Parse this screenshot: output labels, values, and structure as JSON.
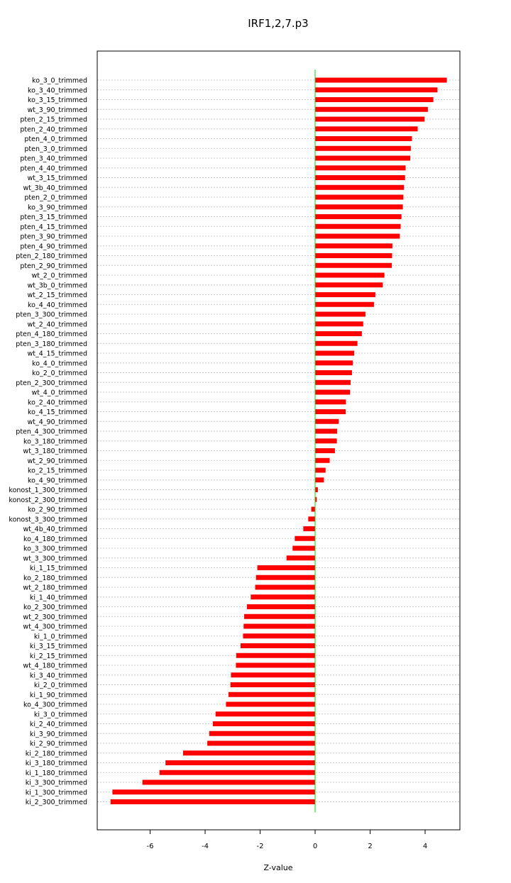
{
  "chart_data": {
    "type": "bar",
    "orientation": "horizontal",
    "title": "IRF1,2,7.p3",
    "xlabel": "Z-value",
    "ylabel": "",
    "xlim": [
      -7.5,
      4.9
    ],
    "xticks": [
      -6,
      -4,
      -2,
      0,
      2,
      4
    ],
    "grid": "horizontal dotted",
    "colors": {
      "bar": "#ff0000",
      "zero_line": "#00dd00",
      "grid": "#c8c8c8"
    },
    "categories": [
      "ko_3_0_trimmed",
      "ko_3_40_trimmed",
      "ko_3_15_trimmed",
      "wt_3_90_trimmed",
      "pten_2_15_trimmed",
      "pten_2_40_trimmed",
      "pten_4_0_trimmed",
      "pten_3_0_trimmed",
      "pten_3_40_trimmed",
      "pten_4_40_trimmed",
      "wt_3_15_trimmed",
      "wt_3b_40_trimmed",
      "pten_2_0_trimmed",
      "ko_3_90_trimmed",
      "pten_3_15_trimmed",
      "pten_4_15_trimmed",
      "pten_3_90_trimmed",
      "pten_4_90_trimmed",
      "pten_2_180_trimmed",
      "pten_2_90_trimmed",
      "wt_2_0_trimmed",
      "wt_3b_0_trimmed",
      "wt_2_15_trimmed",
      "ko_4_40_trimmed",
      "pten_3_300_trimmed",
      "wt_2_40_trimmed",
      "pten_4_180_trimmed",
      "pten_3_180_trimmed",
      "wt_4_15_trimmed",
      "ko_4_0_trimmed",
      "ko_2_0_trimmed",
      "pten_2_300_trimmed",
      "wt_4_0_trimmed",
      "ko_2_40_trimmed",
      "ko_4_15_trimmed",
      "wt_4_90_trimmed",
      "pten_4_300_trimmed",
      "ko_3_180_trimmed",
      "wt_3_180_trimmed",
      "wt_2_90_trimmed",
      "ko_2_15_trimmed",
      "ko_4_90_trimmed",
      "konost_1_300_trimmed",
      "konost_2_300_trimmed",
      "ko_2_90_trimmed",
      "konost_3_300_trimmed",
      "wt_4b_40_trimmed",
      "ko_4_180_trimmed",
      "ko_3_300_trimmed",
      "wt_3_300_trimmed",
      "ki_1_15_trimmed",
      "ko_2_180_trimmed",
      "wt_2_180_trimmed",
      "ki_1_40_trimmed",
      "ko_2_300_trimmed",
      "wt_2_300_trimmed",
      "wt_4_300_trimmed",
      "ki_1_0_trimmed",
      "ki_3_15_trimmed",
      "ki_2_15_trimmed",
      "wt_4_180_trimmed",
      "ki_3_40_trimmed",
      "ki_2_0_trimmed",
      "ki_1_90_trimmed",
      "ko_4_300_trimmed",
      "ki_3_0_trimmed",
      "ki_2_40_trimmed",
      "ki_3_90_trimmed",
      "ki_2_90_trimmed",
      "ki_2_180_trimmed",
      "ki_3_180_trimmed",
      "ki_1_180_trimmed",
      "ki_3_300_trimmed",
      "ki_1_300_trimmed",
      "ki_2_300_trimmed"
    ],
    "values": [
      4.79,
      4.45,
      4.3,
      4.1,
      3.98,
      3.73,
      3.52,
      3.48,
      3.46,
      3.29,
      3.27,
      3.23,
      3.21,
      3.19,
      3.14,
      3.11,
      3.08,
      2.81,
      2.8,
      2.79,
      2.52,
      2.46,
      2.19,
      2.14,
      1.83,
      1.75,
      1.7,
      1.54,
      1.42,
      1.37,
      1.34,
      1.29,
      1.27,
      1.12,
      1.11,
      0.86,
      0.8,
      0.79,
      0.72,
      0.53,
      0.38,
      0.32,
      0.1,
      0.06,
      -0.14,
      -0.25,
      -0.43,
      -0.74,
      -0.82,
      -1.04,
      -2.1,
      -2.15,
      -2.18,
      -2.34,
      -2.48,
      -2.58,
      -2.6,
      -2.62,
      -2.71,
      -2.87,
      -2.88,
      -3.06,
      -3.08,
      -3.15,
      -3.24,
      -3.62,
      -3.72,
      -3.85,
      -3.92,
      -4.8,
      -5.44,
      -5.66,
      -6.28,
      -7.37,
      -7.44
    ]
  }
}
